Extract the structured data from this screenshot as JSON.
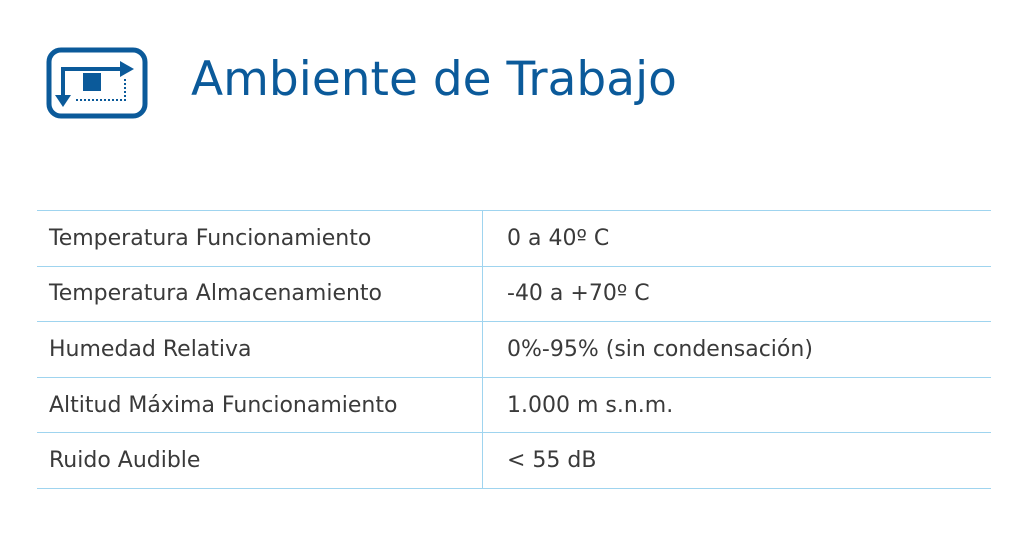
{
  "header": {
    "title": "Ambiente de Trabajo",
    "icon": "workspace-arrows-icon",
    "accent": "#0b5a9a"
  },
  "specs": [
    {
      "label": "Temperatura Funcionamiento",
      "value": "0 a 40º C"
    },
    {
      "label": "Temperatura Almacenamiento",
      "value": "-40 a +70º C"
    },
    {
      "label": "Humedad Relativa",
      "value": "0%-95% (sin condensación)"
    },
    {
      "label": "Altitud Máxima Funcionamiento",
      "value": "1.000 m s.n.m."
    },
    {
      "label": "Ruido Audible",
      "value": "< 55 dB"
    }
  ]
}
